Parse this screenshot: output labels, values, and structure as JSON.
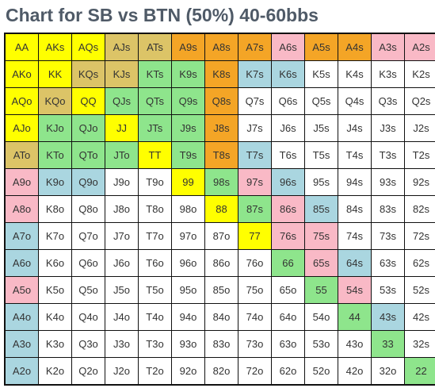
{
  "title": "Chart for SB vs BTN (50%) 40-60bbs",
  "legend_colors": {
    "Y": "#ffff00",
    "T": "#dcc467",
    "O": "#f4a526",
    "P": "#f9b9c6",
    "G": "#8ee58c",
    "B": "#aad6e0",
    "W": "#ffffff"
  },
  "grid": [
    [
      {
        "h": "AA",
        "c": "Y"
      },
      {
        "h": "AKs",
        "c": "Y"
      },
      {
        "h": "AQs",
        "c": "Y"
      },
      {
        "h": "AJs",
        "c": "T"
      },
      {
        "h": "ATs",
        "c": "T"
      },
      {
        "h": "A9s",
        "c": "O"
      },
      {
        "h": "A8s",
        "c": "O"
      },
      {
        "h": "A7s",
        "c": "O"
      },
      {
        "h": "A6s",
        "c": "P"
      },
      {
        "h": "A5s",
        "c": "O"
      },
      {
        "h": "A4s",
        "c": "O"
      },
      {
        "h": "A3s",
        "c": "P"
      },
      {
        "h": "A2s",
        "c": "P"
      }
    ],
    [
      {
        "h": "AKo",
        "c": "Y"
      },
      {
        "h": "KK",
        "c": "Y"
      },
      {
        "h": "KQs",
        "c": "T"
      },
      {
        "h": "KJs",
        "c": "T"
      },
      {
        "h": "KTs",
        "c": "G"
      },
      {
        "h": "K9s",
        "c": "G"
      },
      {
        "h": "K8s",
        "c": "O"
      },
      {
        "h": "K7s",
        "c": "B"
      },
      {
        "h": "K6s",
        "c": "B"
      },
      {
        "h": "K5s",
        "c": "W"
      },
      {
        "h": "K4s",
        "c": "W"
      },
      {
        "h": "K3s",
        "c": "W"
      },
      {
        "h": "K2s",
        "c": "W"
      }
    ],
    [
      {
        "h": "AQo",
        "c": "Y"
      },
      {
        "h": "KQo",
        "c": "T"
      },
      {
        "h": "QQ",
        "c": "Y"
      },
      {
        "h": "QJs",
        "c": "G"
      },
      {
        "h": "QTs",
        "c": "G"
      },
      {
        "h": "Q9s",
        "c": "G"
      },
      {
        "h": "Q8s",
        "c": "O"
      },
      {
        "h": "Q7s",
        "c": "W"
      },
      {
        "h": "Q6s",
        "c": "W"
      },
      {
        "h": "Q5s",
        "c": "W"
      },
      {
        "h": "Q4s",
        "c": "W"
      },
      {
        "h": "Q3s",
        "c": "W"
      },
      {
        "h": "Q2s",
        "c": "W"
      }
    ],
    [
      {
        "h": "AJo",
        "c": "Y"
      },
      {
        "h": "KJo",
        "c": "G"
      },
      {
        "h": "QJo",
        "c": "G"
      },
      {
        "h": "JJ",
        "c": "Y"
      },
      {
        "h": "JTs",
        "c": "G"
      },
      {
        "h": "J9s",
        "c": "G"
      },
      {
        "h": "J8s",
        "c": "O"
      },
      {
        "h": "J7s",
        "c": "W"
      },
      {
        "h": "J6s",
        "c": "W"
      },
      {
        "h": "J5s",
        "c": "W"
      },
      {
        "h": "J4s",
        "c": "W"
      },
      {
        "h": "J3s",
        "c": "W"
      },
      {
        "h": "J2s",
        "c": "W"
      }
    ],
    [
      {
        "h": "ATo",
        "c": "T"
      },
      {
        "h": "KTo",
        "c": "G"
      },
      {
        "h": "QTo",
        "c": "G"
      },
      {
        "h": "JTo",
        "c": "G"
      },
      {
        "h": "TT",
        "c": "Y"
      },
      {
        "h": "T9s",
        "c": "G"
      },
      {
        "h": "T8s",
        "c": "O"
      },
      {
        "h": "T7s",
        "c": "B"
      },
      {
        "h": "T6s",
        "c": "W"
      },
      {
        "h": "T5s",
        "c": "W"
      },
      {
        "h": "T4s",
        "c": "W"
      },
      {
        "h": "T3s",
        "c": "W"
      },
      {
        "h": "T2s",
        "c": "W"
      }
    ],
    [
      {
        "h": "A9o",
        "c": "P"
      },
      {
        "h": "K9o",
        "c": "B"
      },
      {
        "h": "Q9o",
        "c": "B"
      },
      {
        "h": "J9o",
        "c": "W"
      },
      {
        "h": "T9o",
        "c": "W"
      },
      {
        "h": "99",
        "c": "Y"
      },
      {
        "h": "98s",
        "c": "G"
      },
      {
        "h": "97s",
        "c": "P"
      },
      {
        "h": "96s",
        "c": "B"
      },
      {
        "h": "95s",
        "c": "W"
      },
      {
        "h": "94s",
        "c": "W"
      },
      {
        "h": "93s",
        "c": "W"
      },
      {
        "h": "92s",
        "c": "W"
      }
    ],
    [
      {
        "h": "A8o",
        "c": "P"
      },
      {
        "h": "K8o",
        "c": "W"
      },
      {
        "h": "Q8o",
        "c": "W"
      },
      {
        "h": "J8o",
        "c": "W"
      },
      {
        "h": "T8o",
        "c": "W"
      },
      {
        "h": "98o",
        "c": "W"
      },
      {
        "h": "88",
        "c": "Y"
      },
      {
        "h": "87s",
        "c": "G"
      },
      {
        "h": "86s",
        "c": "P"
      },
      {
        "h": "85s",
        "c": "B"
      },
      {
        "h": "84s",
        "c": "W"
      },
      {
        "h": "83s",
        "c": "W"
      },
      {
        "h": "82s",
        "c": "W"
      }
    ],
    [
      {
        "h": "A7o",
        "c": "B"
      },
      {
        "h": "K7o",
        "c": "W"
      },
      {
        "h": "Q7o",
        "c": "W"
      },
      {
        "h": "J7o",
        "c": "W"
      },
      {
        "h": "T7o",
        "c": "W"
      },
      {
        "h": "97o",
        "c": "W"
      },
      {
        "h": "87o",
        "c": "W"
      },
      {
        "h": "77",
        "c": "Y"
      },
      {
        "h": "76s",
        "c": "P"
      },
      {
        "h": "75s",
        "c": "P"
      },
      {
        "h": "74s",
        "c": "W"
      },
      {
        "h": "73s",
        "c": "W"
      },
      {
        "h": "72s",
        "c": "W"
      }
    ],
    [
      {
        "h": "A6o",
        "c": "B"
      },
      {
        "h": "K6o",
        "c": "W"
      },
      {
        "h": "Q6o",
        "c": "W"
      },
      {
        "h": "J6o",
        "c": "W"
      },
      {
        "h": "T6o",
        "c": "W"
      },
      {
        "h": "96o",
        "c": "W"
      },
      {
        "h": "86o",
        "c": "W"
      },
      {
        "h": "76o",
        "c": "W"
      },
      {
        "h": "66",
        "c": "G"
      },
      {
        "h": "65s",
        "c": "P"
      },
      {
        "h": "64s",
        "c": "B"
      },
      {
        "h": "63s",
        "c": "W"
      },
      {
        "h": "62s",
        "c": "W"
      }
    ],
    [
      {
        "h": "A5o",
        "c": "P"
      },
      {
        "h": "K5o",
        "c": "W"
      },
      {
        "h": "Q5o",
        "c": "W"
      },
      {
        "h": "J5o",
        "c": "W"
      },
      {
        "h": "T5o",
        "c": "W"
      },
      {
        "h": "95o",
        "c": "W"
      },
      {
        "h": "85o",
        "c": "W"
      },
      {
        "h": "75o",
        "c": "W"
      },
      {
        "h": "65o",
        "c": "W"
      },
      {
        "h": "55",
        "c": "G"
      },
      {
        "h": "54s",
        "c": "P"
      },
      {
        "h": "53s",
        "c": "W"
      },
      {
        "h": "52s",
        "c": "W"
      }
    ],
    [
      {
        "h": "A4o",
        "c": "B"
      },
      {
        "h": "K4o",
        "c": "W"
      },
      {
        "h": "Q4o",
        "c": "W"
      },
      {
        "h": "J4o",
        "c": "W"
      },
      {
        "h": "T4o",
        "c": "W"
      },
      {
        "h": "94o",
        "c": "W"
      },
      {
        "h": "84o",
        "c": "W"
      },
      {
        "h": "74o",
        "c": "W"
      },
      {
        "h": "64o",
        "c": "W"
      },
      {
        "h": "54o",
        "c": "W"
      },
      {
        "h": "44",
        "c": "G"
      },
      {
        "h": "43s",
        "c": "B"
      },
      {
        "h": "42s",
        "c": "W"
      }
    ],
    [
      {
        "h": "A3o",
        "c": "B"
      },
      {
        "h": "K3o",
        "c": "W"
      },
      {
        "h": "Q3o",
        "c": "W"
      },
      {
        "h": "J3o",
        "c": "W"
      },
      {
        "h": "T3o",
        "c": "W"
      },
      {
        "h": "93o",
        "c": "W"
      },
      {
        "h": "83o",
        "c": "W"
      },
      {
        "h": "73o",
        "c": "W"
      },
      {
        "h": "63o",
        "c": "W"
      },
      {
        "h": "53o",
        "c": "W"
      },
      {
        "h": "43o",
        "c": "W"
      },
      {
        "h": "33",
        "c": "G"
      },
      {
        "h": "32s",
        "c": "W"
      }
    ],
    [
      {
        "h": "A2o",
        "c": "B"
      },
      {
        "h": "K2o",
        "c": "W"
      },
      {
        "h": "Q2o",
        "c": "W"
      },
      {
        "h": "J2o",
        "c": "W"
      },
      {
        "h": "T2o",
        "c": "W"
      },
      {
        "h": "92o",
        "c": "W"
      },
      {
        "h": "82o",
        "c": "W"
      },
      {
        "h": "72o",
        "c": "W"
      },
      {
        "h": "62o",
        "c": "W"
      },
      {
        "h": "52o",
        "c": "W"
      },
      {
        "h": "42o",
        "c": "W"
      },
      {
        "h": "32o",
        "c": "W"
      },
      {
        "h": "22",
        "c": "G"
      }
    ]
  ]
}
